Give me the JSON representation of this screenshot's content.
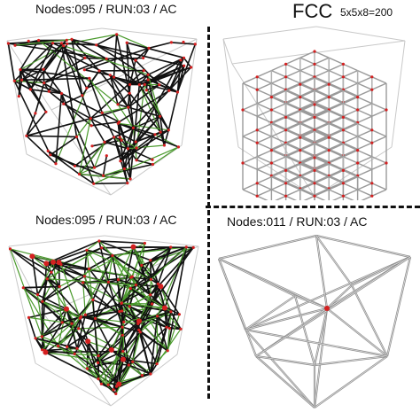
{
  "labels": {
    "top_left": "Nodes:095 / RUN:03 / AC",
    "top_right_title": "FCC",
    "top_right_sub": "5x5x8=200",
    "bottom_left": "Nodes:095 / RUN:03 / AC",
    "bottom_right": "Nodes:011 / RUN:03 / AC"
  },
  "colors": {
    "strut_dark": "#111111",
    "strut_green": "#4a9a2c",
    "strut_gray": "#9a9a9a",
    "node_red": "#d42020",
    "frame": "#c8c8c8"
  }
}
